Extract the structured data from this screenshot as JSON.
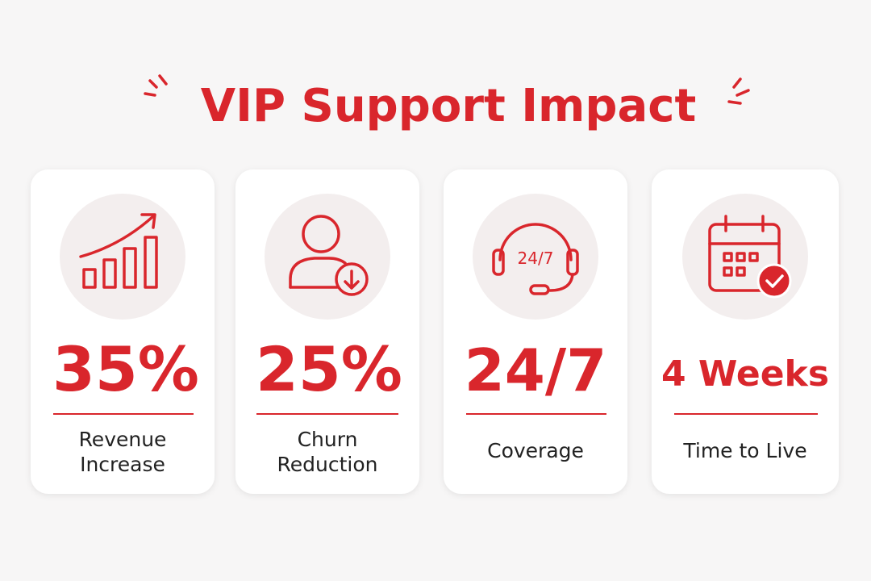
{
  "title": "VIP Support Impact",
  "cards": [
    {
      "value": "35%",
      "label": [
        "Revenue",
        "Increase"
      ]
    },
    {
      "value": "25%",
      "label": [
        "Churn",
        "Reduction"
      ]
    },
    {
      "value": "24/7",
      "label": [
        "Coverage"
      ],
      "icon_text": "24/7"
    },
    {
      "value": "4 Weeks",
      "label": [
        "Time to Live"
      ]
    }
  ]
}
